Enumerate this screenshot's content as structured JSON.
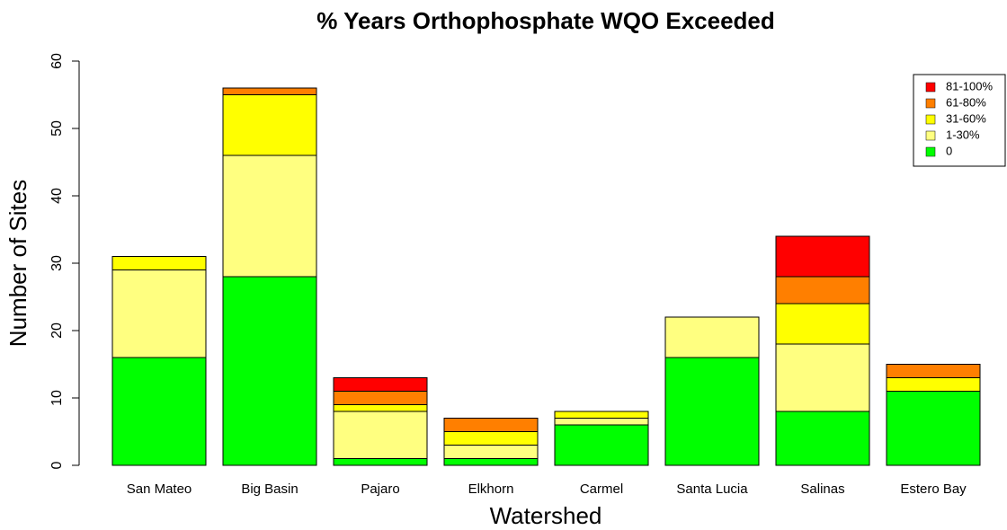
{
  "chart_data": {
    "type": "stacked_bar",
    "title": "% Years Orthophosphate WQO Exceeded",
    "xlabel": "Watershed",
    "ylabel": "Number of Sites",
    "categories": [
      "San Mateo",
      "Big Basin",
      "Pajaro",
      "Elkhorn",
      "Carmel",
      "Santa Lucia",
      "Salinas",
      "Estero Bay"
    ],
    "series": [
      {
        "name": "0",
        "color": "#00ff00",
        "values": [
          16,
          28,
          1,
          1,
          6,
          16,
          8,
          11
        ]
      },
      {
        "name": "1-30%",
        "color": "#ffff80",
        "values": [
          13,
          18,
          7,
          2,
          1,
          6,
          10,
          0
        ]
      },
      {
        "name": "31-60%",
        "color": "#ffff00",
        "values": [
          2,
          9,
          1,
          2,
          1,
          0,
          6,
          2
        ]
      },
      {
        "name": "61-80%",
        "color": "#ff7f00",
        "values": [
          0,
          1,
          2,
          2,
          0,
          0,
          4,
          2
        ]
      },
      {
        "name": "81-100%",
        "color": "#ff0000",
        "values": [
          0,
          0,
          2,
          0,
          0,
          0,
          6,
          0
        ]
      }
    ],
    "ylim": [
      0,
      60
    ],
    "yticks": [
      0,
      10,
      20,
      30,
      40,
      50,
      60
    ],
    "legend": "top-right"
  }
}
